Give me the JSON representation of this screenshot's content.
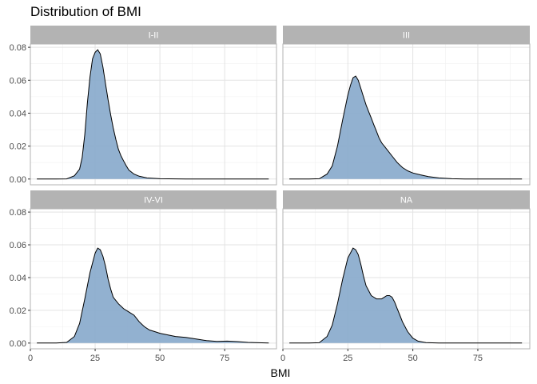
{
  "chart_data": {
    "type": "area",
    "title": "Distribution of BMI",
    "xlabel": "BMI",
    "ylabel": "",
    "xlim": [
      0,
      95
    ],
    "ylim": [
      -0.0035,
      0.082
    ],
    "x_ticks": [
      0,
      25,
      50,
      75
    ],
    "y_ticks": [
      0.0,
      0.02,
      0.04,
      0.06,
      0.08
    ],
    "y_tick_labels": [
      "0.00",
      "0.02",
      "0.04",
      "0.06",
      "0.08"
    ],
    "grid": true,
    "facet_layout": "2x2",
    "fill_color": "#86a9cb",
    "line_color": "#000000",
    "strip_color": "#b3b3b3",
    "panels": [
      {
        "label": "I-II",
        "x": [
          2.5,
          10,
          14,
          17,
          19,
          20,
          21,
          22,
          23,
          24,
          25,
          26,
          27,
          28,
          29,
          30,
          31,
          32,
          33,
          34,
          35,
          36,
          37,
          38,
          40,
          42,
          45,
          50,
          60,
          70,
          80,
          92
        ],
        "y": [
          0,
          0,
          0.0001,
          0.002,
          0.006,
          0.013,
          0.027,
          0.046,
          0.062,
          0.073,
          0.077,
          0.0785,
          0.076,
          0.068,
          0.058,
          0.048,
          0.039,
          0.031,
          0.024,
          0.018,
          0.014,
          0.011,
          0.008,
          0.0055,
          0.003,
          0.0017,
          0.0007,
          0.0002,
          0,
          0,
          0,
          0
        ]
      },
      {
        "label": "III",
        "x": [
          2.5,
          10,
          14,
          17,
          19,
          21,
          23,
          25,
          26,
          27,
          28,
          29,
          30,
          31,
          32,
          33,
          34,
          35,
          36,
          37,
          38,
          40,
          42,
          44,
          46,
          48,
          50,
          53,
          56,
          60,
          65,
          70,
          80,
          92
        ],
        "y": [
          0,
          0,
          0.0002,
          0.003,
          0.008,
          0.02,
          0.036,
          0.051,
          0.057,
          0.0615,
          0.0625,
          0.06,
          0.055,
          0.05,
          0.045,
          0.041,
          0.037,
          0.033,
          0.029,
          0.025,
          0.022,
          0.018,
          0.014,
          0.01,
          0.007,
          0.005,
          0.0037,
          0.0025,
          0.0015,
          0.0007,
          0.0002,
          0,
          0,
          0
        ]
      },
      {
        "label": "IV-VI",
        "x": [
          2.5,
          10,
          14,
          17,
          19,
          21,
          23,
          25,
          26,
          27,
          28,
          29,
          30,
          31,
          32,
          34,
          36,
          38,
          40,
          42,
          44,
          46,
          48,
          50,
          53,
          56,
          60,
          64,
          68,
          72,
          76,
          80,
          84,
          88,
          92
        ],
        "y": [
          0,
          0,
          0.0004,
          0.004,
          0.012,
          0.027,
          0.043,
          0.055,
          0.058,
          0.057,
          0.053,
          0.047,
          0.039,
          0.033,
          0.028,
          0.024,
          0.021,
          0.019,
          0.017,
          0.013,
          0.01,
          0.008,
          0.007,
          0.006,
          0.005,
          0.004,
          0.0035,
          0.0025,
          0.0015,
          0.001,
          0.0012,
          0.0009,
          0.0004,
          0.0002,
          0
        ]
      },
      {
        "label": "NA",
        "x": [
          2.5,
          10,
          14,
          17,
          19,
          21,
          23,
          25,
          27,
          28,
          29,
          30,
          31,
          32,
          34,
          35,
          36,
          38,
          40,
          41,
          42,
          43,
          44,
          45,
          46,
          48,
          50,
          52,
          55,
          60,
          70,
          80,
          92
        ],
        "y": [
          0,
          0,
          0.0002,
          0.004,
          0.011,
          0.024,
          0.039,
          0.052,
          0.058,
          0.057,
          0.054,
          0.048,
          0.041,
          0.035,
          0.029,
          0.028,
          0.027,
          0.027,
          0.029,
          0.029,
          0.028,
          0.025,
          0.021,
          0.017,
          0.013,
          0.007,
          0.003,
          0.0012,
          0.0003,
          0,
          0,
          0,
          0
        ]
      }
    ]
  }
}
